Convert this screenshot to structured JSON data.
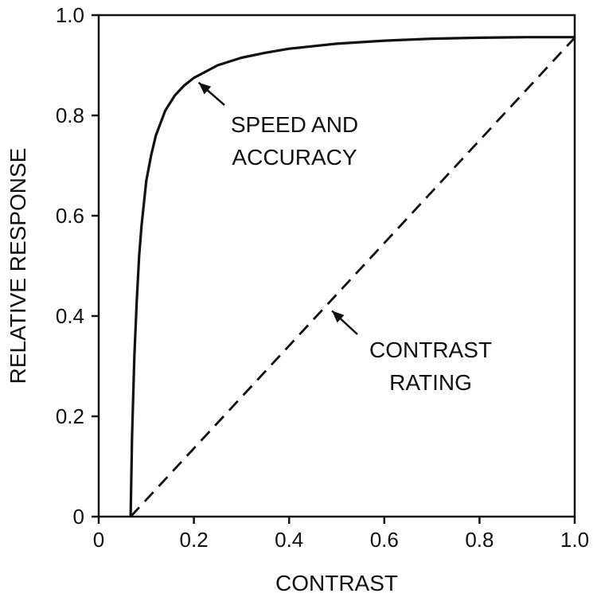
{
  "chart_data": {
    "type": "line",
    "title": "",
    "xlabel": "CONTRAST",
    "ylabel": "RELATIVE RESPONSE",
    "xlim": [
      0,
      1.0
    ],
    "ylim": [
      0,
      1.0
    ],
    "xticks": [
      "0",
      "0.2",
      "0.4",
      "0.6",
      "0.8",
      "1.0"
    ],
    "yticks": [
      "0",
      "0.2",
      "0.4",
      "0.6",
      "0.8",
      "1.0"
    ],
    "grid": false,
    "legend": "none",
    "series": [
      {
        "style": "solid",
        "x": [
          0.067,
          0.07,
          0.075,
          0.08,
          0.085,
          0.09,
          0.1,
          0.11,
          0.12,
          0.14,
          0.16,
          0.18,
          0.2,
          0.25,
          0.3,
          0.35,
          0.4,
          0.5,
          0.6,
          0.7,
          0.8,
          0.9,
          1.0
        ],
        "y": [
          0.0,
          0.16,
          0.32,
          0.43,
          0.52,
          0.58,
          0.67,
          0.72,
          0.76,
          0.81,
          0.84,
          0.86,
          0.875,
          0.9,
          0.915,
          0.925,
          0.933,
          0.943,
          0.949,
          0.953,
          0.955,
          0.956,
          0.956
        ]
      },
      {
        "style": "dashed",
        "x": [
          0.067,
          1.0
        ],
        "y": [
          0.0,
          0.955
        ]
      }
    ],
    "annotations": [
      {
        "lines": [
          "SPEED AND",
          "ACCURACY"
        ],
        "point": [
          0.2,
          0.875
        ]
      },
      {
        "lines": [
          "CONTRAST",
          "RATING"
        ],
        "point": [
          0.48,
          0.42
        ]
      }
    ]
  }
}
